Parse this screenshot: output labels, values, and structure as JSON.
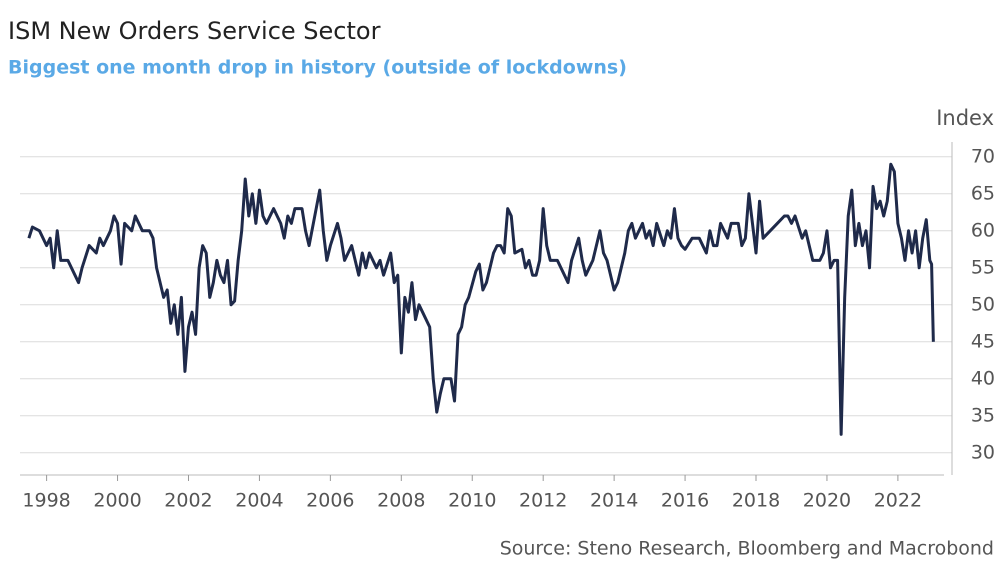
{
  "chart_data": {
    "type": "line",
    "title": "ISM New Orders Service Sector",
    "subtitle": "Biggest one month drop in history (outside of lockdowns)",
    "y_label": "Index",
    "source": "Source: Steno Research, Bloomberg and Macrobond",
    "color": "#1f2a4a",
    "grid": true,
    "y_axis_side": "right",
    "xlim": [
      1997.25,
      2023.3
    ],
    "xticks": [
      1998,
      2000,
      2002,
      2004,
      2006,
      2008,
      2010,
      2012,
      2014,
      2016,
      2018,
      2020,
      2022
    ],
    "ylim": [
      27,
      72
    ],
    "yticks": [
      30,
      35,
      40,
      45,
      50,
      55,
      60,
      65,
      70
    ],
    "x": [
      1997.5,
      1997.6,
      1997.8,
      1998.0,
      1998.1,
      1998.2,
      1998.3,
      1998.4,
      1998.6,
      1998.8,
      1998.9,
      1999.0,
      1999.2,
      1999.4,
      1999.5,
      1999.6,
      1999.8,
      1999.9,
      2000.0,
      2000.1,
      2000.2,
      2000.4,
      2000.5,
      2000.7,
      2000.9,
      2001.0,
      2001.1,
      2001.3,
      2001.4,
      2001.5,
      2001.6,
      2001.7,
      2001.8,
      2001.9,
      2002.0,
      2002.1,
      2002.2,
      2002.3,
      2002.4,
      2002.5,
      2002.6,
      2002.7,
      2002.8,
      2002.9,
      2003.0,
      2003.1,
      2003.2,
      2003.3,
      2003.4,
      2003.5,
      2003.6,
      2003.7,
      2003.8,
      2003.9,
      2004.0,
      2004.1,
      2004.2,
      2004.4,
      2004.6,
      2004.7,
      2004.8,
      2004.9,
      2005.0,
      2005.2,
      2005.3,
      2005.4,
      2005.6,
      2005.7,
      2005.8,
      2005.9,
      2006.0,
      2006.2,
      2006.3,
      2006.4,
      2006.6,
      2006.8,
      2006.9,
      2007.0,
      2007.1,
      2007.3,
      2007.4,
      2007.5,
      2007.7,
      2007.8,
      2007.9,
      2008.0,
      2008.1,
      2008.2,
      2008.3,
      2008.4,
      2008.5,
      2008.6,
      2008.8,
      2008.9,
      2009.0,
      2009.1,
      2009.2,
      2009.4,
      2009.5,
      2009.6,
      2009.7,
      2009.8,
      2009.9,
      2010.1,
      2010.2,
      2010.3,
      2010.4,
      2010.6,
      2010.7,
      2010.8,
      2010.9,
      2011.0,
      2011.1,
      2011.2,
      2011.4,
      2011.5,
      2011.6,
      2011.7,
      2011.8,
      2011.9,
      2012.0,
      2012.1,
      2012.2,
      2012.4,
      2012.6,
      2012.7,
      2012.8,
      2013.0,
      2013.1,
      2013.2,
      2013.4,
      2013.6,
      2013.7,
      2013.8,
      2013.9,
      2014.0,
      2014.1,
      2014.3,
      2014.4,
      2014.5,
      2014.6,
      2014.8,
      2014.9,
      2015.0,
      2015.1,
      2015.2,
      2015.4,
      2015.5,
      2015.6,
      2015.7,
      2015.8,
      2015.9,
      2016.0,
      2016.2,
      2016.4,
      2016.6,
      2016.7,
      2016.8,
      2016.9,
      2017.0,
      2017.2,
      2017.3,
      2017.5,
      2017.6,
      2017.7,
      2017.8,
      2017.9,
      2018.0,
      2018.1,
      2018.2,
      2018.4,
      2018.6,
      2018.8,
      2018.9,
      2019.0,
      2019.1,
      2019.3,
      2019.4,
      2019.5,
      2019.6,
      2019.8,
      2019.9,
      2020.0,
      2020.1,
      2020.2,
      2020.3,
      2020.4,
      2020.5,
      2020.6,
      2020.7,
      2020.8,
      2020.9,
      2021.0,
      2021.1,
      2021.2,
      2021.3,
      2021.4,
      2021.5,
      2021.6,
      2021.7,
      2021.8,
      2021.9,
      2022.0,
      2022.1,
      2022.2,
      2022.3,
      2022.4,
      2022.5,
      2022.6,
      2022.7,
      2022.8,
      2022.9,
      2022.95,
      2023.0
    ],
    "values": [
      59,
      60.5,
      60,
      58,
      59,
      55,
      60,
      56,
      56,
      54,
      53,
      55,
      58,
      57,
      59,
      58,
      60,
      62,
      61,
      55.5,
      61,
      60,
      62,
      60,
      60,
      59,
      55,
      51,
      52,
      47.5,
      50,
      46,
      51,
      41,
      47,
      49,
      46,
      55,
      58,
      57,
      51,
      53,
      56,
      54,
      53,
      56,
      50,
      50.5,
      56,
      60,
      67,
      62,
      65,
      61,
      65.5,
      62,
      61,
      63,
      61,
      59,
      62,
      61,
      63,
      63,
      60,
      58,
      63,
      65.5,
      60,
      56,
      58,
      61,
      59,
      56,
      58,
      54,
      57,
      55,
      57,
      55,
      56,
      54,
      57,
      53,
      54,
      43.5,
      51,
      49,
      53,
      48,
      50,
      49,
      47,
      40,
      35.5,
      38,
      40,
      40,
      37,
      46,
      47,
      50,
      51,
      54.5,
      55.5,
      52,
      53,
      57,
      58,
      58,
      57,
      63,
      62,
      57,
      57.5,
      55,
      56,
      54,
      54,
      56,
      63,
      58,
      56,
      56,
      54,
      53,
      56,
      59,
      56,
      54,
      56,
      60,
      57,
      56,
      54,
      52,
      53,
      57,
      60,
      61,
      59,
      61,
      59,
      60,
      58,
      61,
      58,
      60,
      59,
      63,
      59,
      58,
      57.5,
      59,
      59,
      57,
      60,
      58,
      58,
      61,
      59,
      61,
      61,
      58,
      59,
      65,
      61,
      57,
      64,
      59,
      60,
      61,
      62,
      62,
      61,
      62,
      59,
      60,
      58,
      56,
      56,
      57,
      60,
      55,
      56,
      56,
      32.5,
      51,
      62,
      65.5,
      58,
      61,
      58,
      60,
      55,
      66,
      63,
      64,
      62,
      64,
      69,
      68,
      61,
      59,
      56,
      60,
      57,
      60,
      55,
      59,
      61.5,
      56,
      55.5,
      45
    ]
  }
}
